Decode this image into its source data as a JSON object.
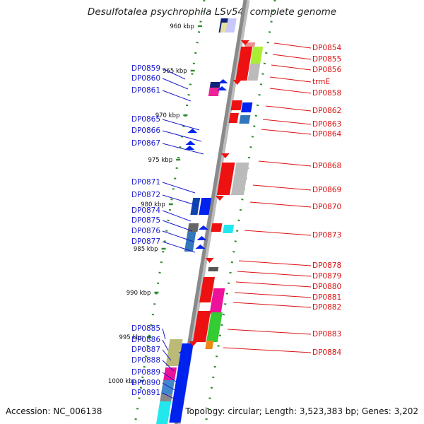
{
  "title": "Desulfotalea psychrophila LSv54, complete genome",
  "footer": {
    "accession": "Accession: NC_006138",
    "summary": "Topology: circular; Length: 3,523,383 bp; Genes: 3,202"
  },
  "scale_labels": [
    "960 kbp",
    "965 kbp",
    "970 kbp",
    "975 kbp",
    "980 kbp",
    "985 kbp",
    "990 kbp",
    "995 kbp",
    "1000 kbp"
  ],
  "colors": {
    "reverse_label": "#1a1acc",
    "forward_label": "#dd1111",
    "backbone": "#8a8a8a",
    "track_dots": "#2e8b2e"
  },
  "reverse_genes": [
    "DP0859",
    "DP0860",
    "DP0861",
    "DP0865",
    "DP0866",
    "DP0867",
    "DP0871",
    "DP0872",
    "DP0874",
    "DP0875",
    "DP0876",
    "DP0877",
    "DP0885",
    "DP0886",
    "DP0887",
    "DP0888",
    "DP0889",
    "DP0890",
    "DP0891"
  ],
  "forward_genes": [
    "DP0854",
    "DP0855",
    "DP0856",
    "trmE",
    "DP0858",
    "DP0862",
    "DP0863",
    "DP0864",
    "DP0868",
    "DP0869",
    "DP0870",
    "DP0873",
    "DP0878",
    "DP0879",
    "DP0880",
    "DP0881",
    "DP0882",
    "DP0883",
    "DP0884"
  ]
}
